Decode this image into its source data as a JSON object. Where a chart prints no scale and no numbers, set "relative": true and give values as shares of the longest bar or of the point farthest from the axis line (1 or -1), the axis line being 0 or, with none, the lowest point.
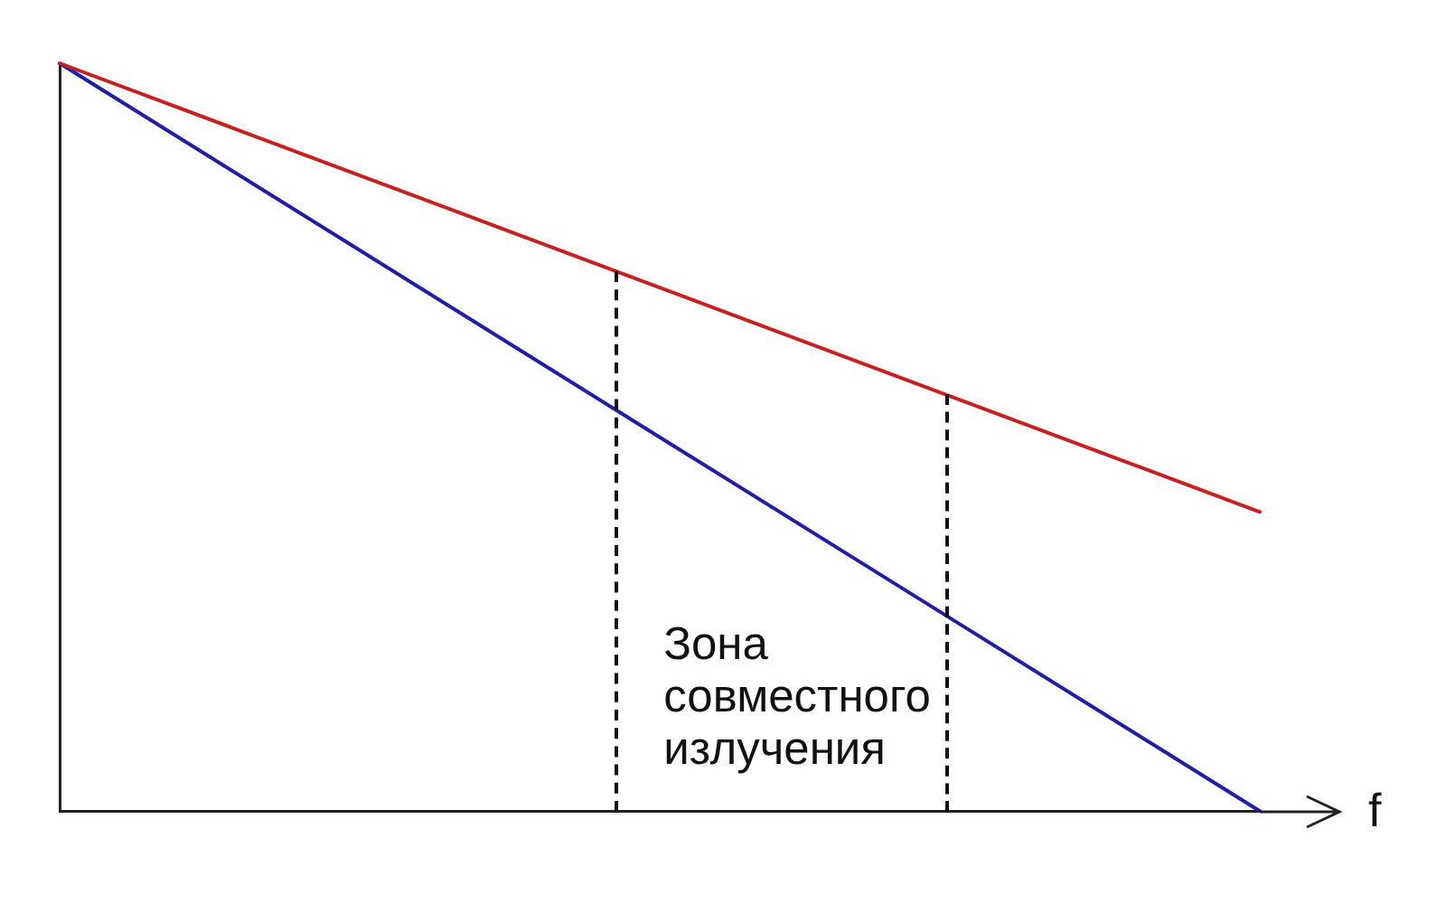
{
  "chart_data": {
    "type": "line",
    "relative": true,
    "xlabel": "f",
    "categories": [
      null,
      null
    ],
    "series": [
      {
        "color": "#c8201e",
        "values": [
          1,
          0.4
        ]
      },
      {
        "color": "#1e1eaa",
        "values": [
          1,
          0
        ]
      }
    ],
    "annotations": [
      "Зона совместного излучения"
    ],
    "grid": false,
    "legend": false
  }
}
